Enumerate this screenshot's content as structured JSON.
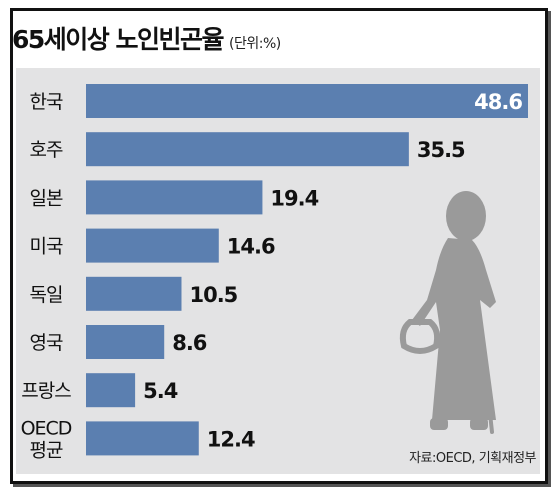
{
  "header": {
    "title": "65세이상 노인빈곤율",
    "unit": "(단위:%)"
  },
  "source": "자료:OECD, 기획재정부",
  "chart_data": {
    "type": "bar",
    "orientation": "horizontal",
    "title": "65세이상 노인빈곤율",
    "unit": "%",
    "categories": [
      "한국",
      "호주",
      "일본",
      "미국",
      "독일",
      "영국",
      "프랑스",
      "OECD 평균"
    ],
    "values": [
      48.6,
      35.5,
      19.4,
      14.6,
      10.5,
      8.6,
      5.4,
      12.4
    ],
    "value_labels": [
      "48.6",
      "35.5",
      "19.4",
      "14.6",
      "10.5",
      "8.6",
      "5.4",
      "12.4"
    ],
    "xlim": [
      0,
      48.6
    ],
    "grid": false,
    "legend": "none",
    "bar_color": "#5b7fb0",
    "first_label_inside_bar": true
  },
  "colors": {
    "bar": "#5b7fb0",
    "plot_background": "#e3e3e4",
    "text": "#111111"
  },
  "illustration": "elderly-woman-silhouette"
}
